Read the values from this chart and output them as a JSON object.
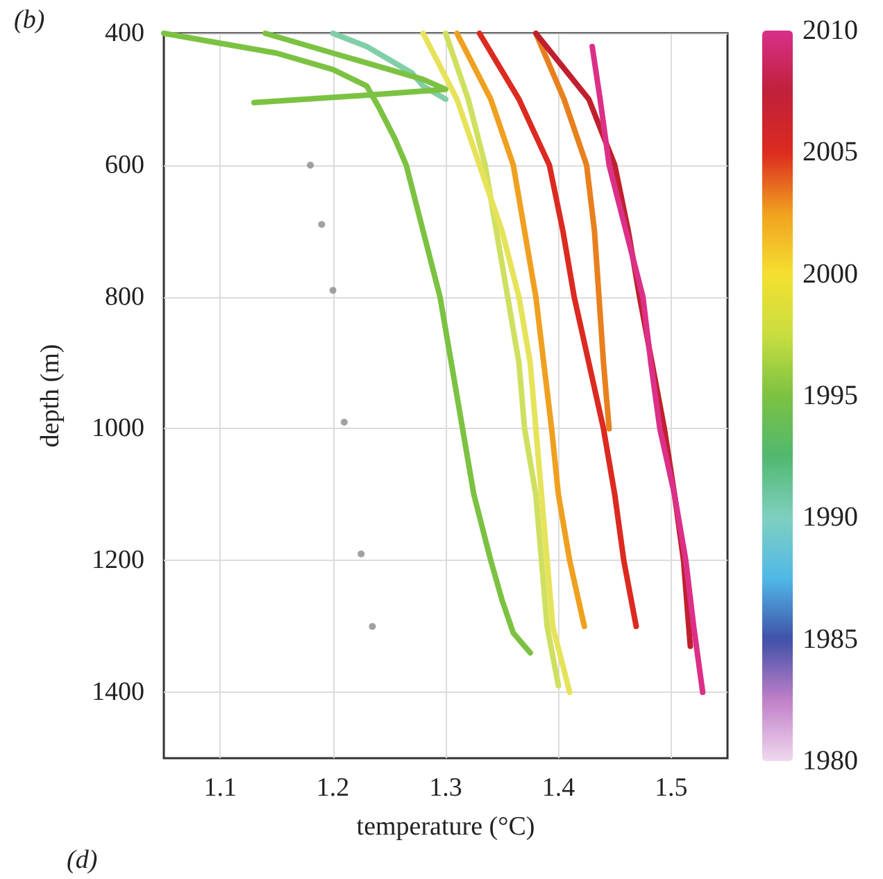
{
  "chart_data": {
    "type": "line",
    "xlabel": "temperature (°C)",
    "ylabel": "depth (m)",
    "annotations": [
      "(b)",
      "(d)"
    ],
    "xlim": [
      1.05,
      1.55
    ],
    "xticks": [
      1.1,
      1.2,
      1.3,
      1.4,
      1.5
    ],
    "ylim": [
      1500,
      400
    ],
    "yticks": [
      400,
      600,
      800,
      1000,
      1200,
      1400
    ],
    "clim": [
      1980,
      2010
    ],
    "cticks": [
      1980,
      1985,
      1990,
      1995,
      2000,
      2005,
      2010
    ],
    "grid": true,
    "marker": "none",
    "line_style": "solid",
    "series": [
      {
        "color": "#80cfa9",
        "x": [
          1.2,
          1.23,
          1.25,
          1.27,
          1.28,
          1.3
        ],
        "values": [
          400,
          420,
          440,
          460,
          480,
          500
        ]
      },
      {
        "color": "#7cc242",
        "x": [
          1.14,
          1.2,
          1.25,
          1.28,
          1.3,
          1.22,
          1.13
        ],
        "values": [
          400,
          430,
          455,
          470,
          485,
          495,
          505
        ]
      },
      {
        "color": "#7cc242",
        "x": [
          1.05,
          1.1,
          1.15,
          1.2,
          1.23,
          1.24,
          1.255,
          1.265,
          1.28,
          1.295,
          1.305,
          1.315,
          1.325,
          1.34,
          1.35,
          1.36,
          1.375
        ],
        "values": [
          400,
          415,
          430,
          455,
          480,
          510,
          560,
          600,
          700,
          800,
          900,
          1000,
          1100,
          1200,
          1260,
          1310,
          1340
        ]
      },
      {
        "color": "#cfe060",
        "x": [
          1.3,
          1.32,
          1.335,
          1.345,
          1.355,
          1.365,
          1.37,
          1.38,
          1.385,
          1.39,
          1.4
        ],
        "values": [
          400,
          500,
          600,
          700,
          800,
          900,
          1000,
          1100,
          1200,
          1300,
          1390
        ]
      },
      {
        "color": "#e6e35a",
        "x": [
          1.28,
          1.31,
          1.33,
          1.35,
          1.365,
          1.375,
          1.38,
          1.385,
          1.39,
          1.395,
          1.41
        ],
        "values": [
          400,
          500,
          600,
          700,
          800,
          900,
          1000,
          1100,
          1200,
          1300,
          1400
        ]
      },
      {
        "color": "#f0a020",
        "x": [
          1.31,
          1.34,
          1.36,
          1.37,
          1.38,
          1.387,
          1.394,
          1.4,
          1.41,
          1.423
        ],
        "values": [
          400,
          500,
          600,
          700,
          800,
          900,
          1000,
          1100,
          1200,
          1300
        ]
      },
      {
        "color": "#e8801e",
        "x": [
          1.38,
          1.405,
          1.425,
          1.432,
          1.436,
          1.44,
          1.445
        ],
        "values": [
          400,
          500,
          600,
          700,
          800,
          900,
          1000
        ]
      },
      {
        "color": "#dc2a20",
        "x": [
          1.33,
          1.365,
          1.392,
          1.404,
          1.414,
          1.427,
          1.44,
          1.45,
          1.458,
          1.469
        ],
        "values": [
          400,
          500,
          600,
          700,
          800,
          900,
          1000,
          1100,
          1200,
          1300
        ]
      },
      {
        "color": "#c0202e",
        "x": [
          1.38,
          1.427,
          1.45,
          1.462,
          1.472,
          1.483,
          1.494,
          1.503,
          1.511,
          1.517
        ],
        "values": [
          400,
          500,
          600,
          700,
          800,
          900,
          1000,
          1100,
          1200,
          1330
        ]
      },
      {
        "color": "#dc3088",
        "x": [
          1.43,
          1.437,
          1.445,
          1.46,
          1.475,
          1.482,
          1.49,
          1.503,
          1.513,
          1.52,
          1.528
        ],
        "values": [
          420,
          500,
          600,
          700,
          800,
          900,
          1000,
          1100,
          1200,
          1300,
          1400
        ]
      },
      {
        "type": "scatter",
        "color": "#8a8a8a",
        "marker": "circle",
        "x": [
          1.18,
          1.19,
          1.2,
          1.21,
          1.225,
          1.235
        ],
        "values": [
          600,
          690,
          790,
          990,
          1190,
          1300
        ]
      }
    ]
  }
}
